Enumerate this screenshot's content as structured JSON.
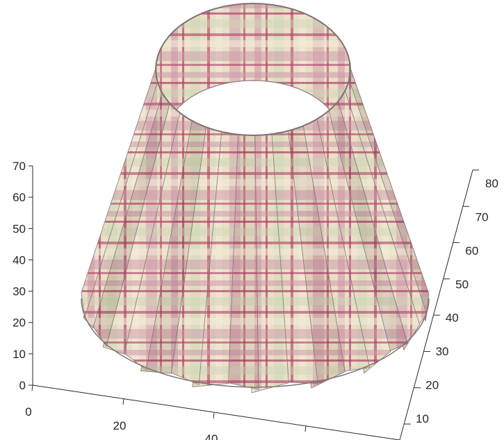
{
  "chart_data": {
    "type": "surface",
    "title": "",
    "description_shape": "frustum",
    "texture": "plaid",
    "colors": {
      "base": "#e8dcc3",
      "stripe_dark": "#a8345c",
      "stripe_mid": "#c98aa0",
      "stripe_green": "#c9d4b0",
      "stripe_light": "#f1e9d7",
      "edge": "#7d7272",
      "axis": "#262626"
    },
    "axes": {
      "z": {
        "ticks": [
          "0",
          "10",
          "20",
          "30",
          "40",
          "50",
          "60",
          "70"
        ],
        "range": [
          0,
          70
        ]
      },
      "x": {
        "ticks": [
          "0",
          "20",
          "40"
        ],
        "range": [
          0,
          40
        ]
      },
      "y": {
        "ticks": [
          "10",
          "20",
          "30",
          "40",
          "50",
          "60",
          "70",
          "80"
        ],
        "range": [
          10,
          80
        ]
      }
    },
    "grid": false,
    "legend": "none"
  }
}
